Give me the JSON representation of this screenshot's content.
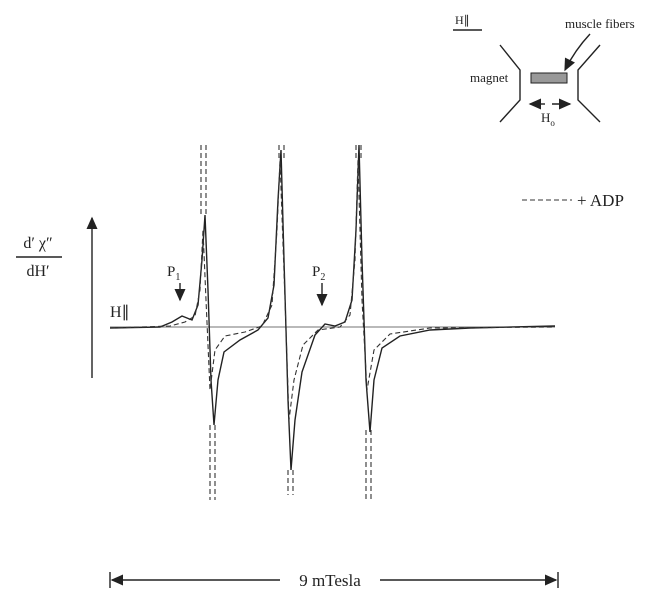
{
  "inset": {
    "title": "H∥",
    "fiber_label": "muscle fibers",
    "magnet_label": "magnet",
    "field_label": "H",
    "field_subscript": "o"
  },
  "legend": {
    "label": "+ ADP"
  },
  "axis": {
    "numerator": "d′ χ″",
    "denominator": "dH′"
  },
  "peaks": [
    {
      "label": "P",
      "subscript": "1"
    },
    {
      "label": "P",
      "subscript": "2"
    }
  ],
  "orientation_label": "H∥",
  "scale_label": "9 mTesla"
}
